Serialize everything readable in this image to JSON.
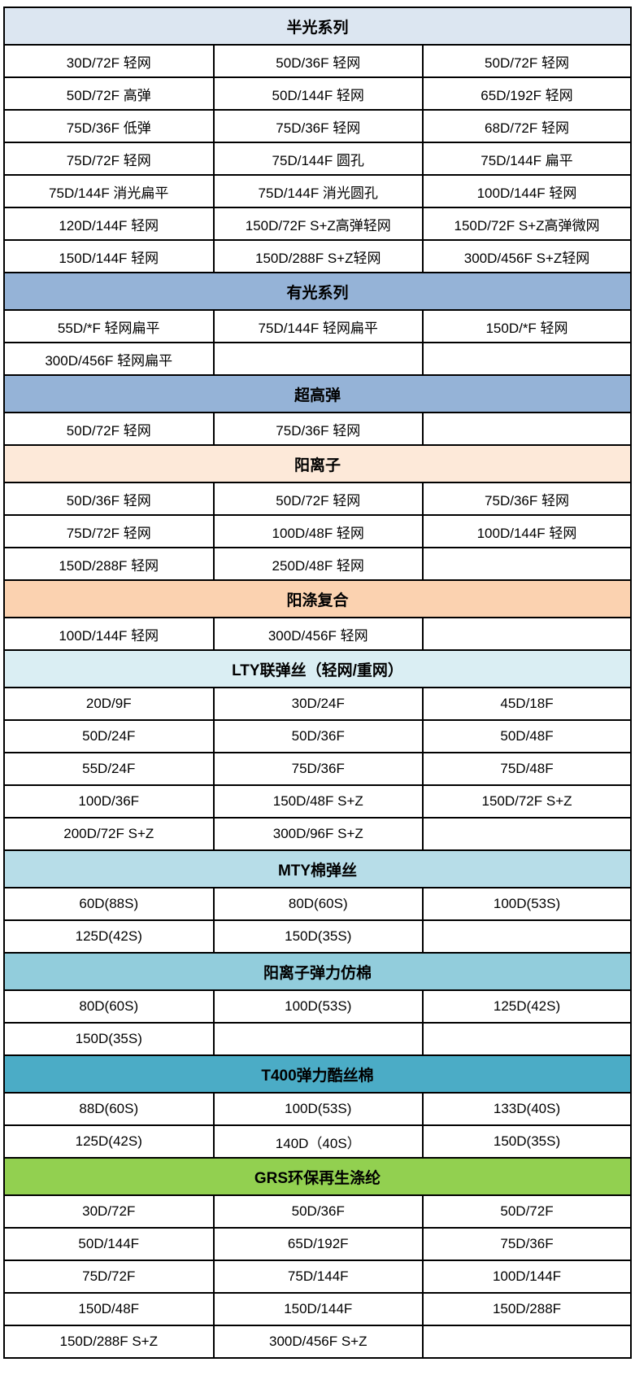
{
  "table": {
    "columns": 3,
    "border_color": "#000000",
    "text_color": "#000000",
    "sections": [
      {
        "title": "半光系列",
        "color": "#dce6f1",
        "rows": [
          [
            "30D/72F 轻网",
            "50D/36F 轻网",
            "50D/72F 轻网"
          ],
          [
            "50D/72F 高弹",
            "50D/144F 轻网",
            "65D/192F 轻网"
          ],
          [
            "75D/36F 低弹",
            "75D/36F 轻网",
            "68D/72F 轻网"
          ],
          [
            "75D/72F 轻网",
            "75D/144F 圆孔",
            "75D/144F 扁平"
          ],
          [
            "75D/144F 消光扁平",
            "75D/144F 消光圆孔",
            "100D/144F 轻网"
          ],
          [
            "120D/144F 轻网",
            "150D/72F S+Z高弹轻网",
            "150D/72F S+Z高弹微网"
          ],
          [
            "150D/144F 轻网",
            "150D/288F S+Z轻网",
            "300D/456F S+Z轻网"
          ]
        ]
      },
      {
        "title": "有光系列",
        "color": "#95b3d7",
        "rows": [
          [
            "55D/*F 轻网扁平",
            "75D/144F 轻网扁平",
            "150D/*F 轻网"
          ],
          [
            "300D/456F 轻网扁平",
            "",
            ""
          ]
        ]
      },
      {
        "title": "超高弹",
        "color": "#95b3d7",
        "rows": [
          [
            "50D/72F 轻网",
            "75D/36F 轻网",
            ""
          ]
        ]
      },
      {
        "title": "阳离子",
        "color": "#fde9d9",
        "rows": [
          [
            "50D/36F 轻网",
            "50D/72F 轻网",
            "75D/36F 轻网"
          ],
          [
            "75D/72F 轻网",
            "100D/48F 轻网",
            "100D/144F 轻网"
          ],
          [
            "150D/288F 轻网",
            "250D/48F 轻网",
            ""
          ]
        ]
      },
      {
        "title": "阳涤复合",
        "color": "#fbd2b0",
        "rows": [
          [
            "100D/144F 轻网",
            "300D/456F 轻网",
            ""
          ]
        ]
      },
      {
        "title": "LTY联弹丝（轻网/重网）",
        "color": "#daeef3",
        "rows": [
          [
            "20D/9F",
            "30D/24F",
            "45D/18F"
          ],
          [
            "50D/24F",
            "50D/36F",
            "50D/48F"
          ],
          [
            "55D/24F",
            "75D/36F",
            "75D/48F"
          ],
          [
            "100D/36F",
            "150D/48F S+Z",
            "150D/72F S+Z"
          ],
          [
            "200D/72F S+Z",
            "300D/96F S+Z",
            ""
          ]
        ]
      },
      {
        "title": "MTY棉弹丝",
        "color": "#b7dde8",
        "rows": [
          [
            "60D(88S)",
            "80D(60S)",
            "100D(53S)"
          ],
          [
            "125D(42S)",
            "150D(35S)",
            ""
          ]
        ]
      },
      {
        "title": "阳离子弹力仿棉",
        "color": "#92cddc",
        "rows": [
          [
            "80D(60S)",
            "100D(53S)",
            "125D(42S)"
          ],
          [
            "150D(35S)",
            "",
            ""
          ]
        ]
      },
      {
        "title": "T400弹力酷丝棉",
        "color": "#4bacc6",
        "rows": [
          [
            "88D(60S)",
            "100D(53S)",
            "133D(40S)"
          ],
          [
            "125D(42S)",
            "140D（40S）",
            "150D(35S)"
          ]
        ]
      },
      {
        "title": "GRS环保再生涤纶",
        "color": "#92d050",
        "rows": [
          [
            "30D/72F",
            "50D/36F",
            "50D/72F"
          ],
          [
            "50D/144F",
            "65D/192F",
            "75D/36F"
          ],
          [
            "75D/72F",
            "75D/144F",
            "100D/144F"
          ],
          [
            "150D/48F",
            "150D/144F",
            "150D/288F"
          ],
          [
            "150D/288F S+Z",
            "300D/456F S+Z",
            ""
          ]
        ]
      }
    ]
  }
}
